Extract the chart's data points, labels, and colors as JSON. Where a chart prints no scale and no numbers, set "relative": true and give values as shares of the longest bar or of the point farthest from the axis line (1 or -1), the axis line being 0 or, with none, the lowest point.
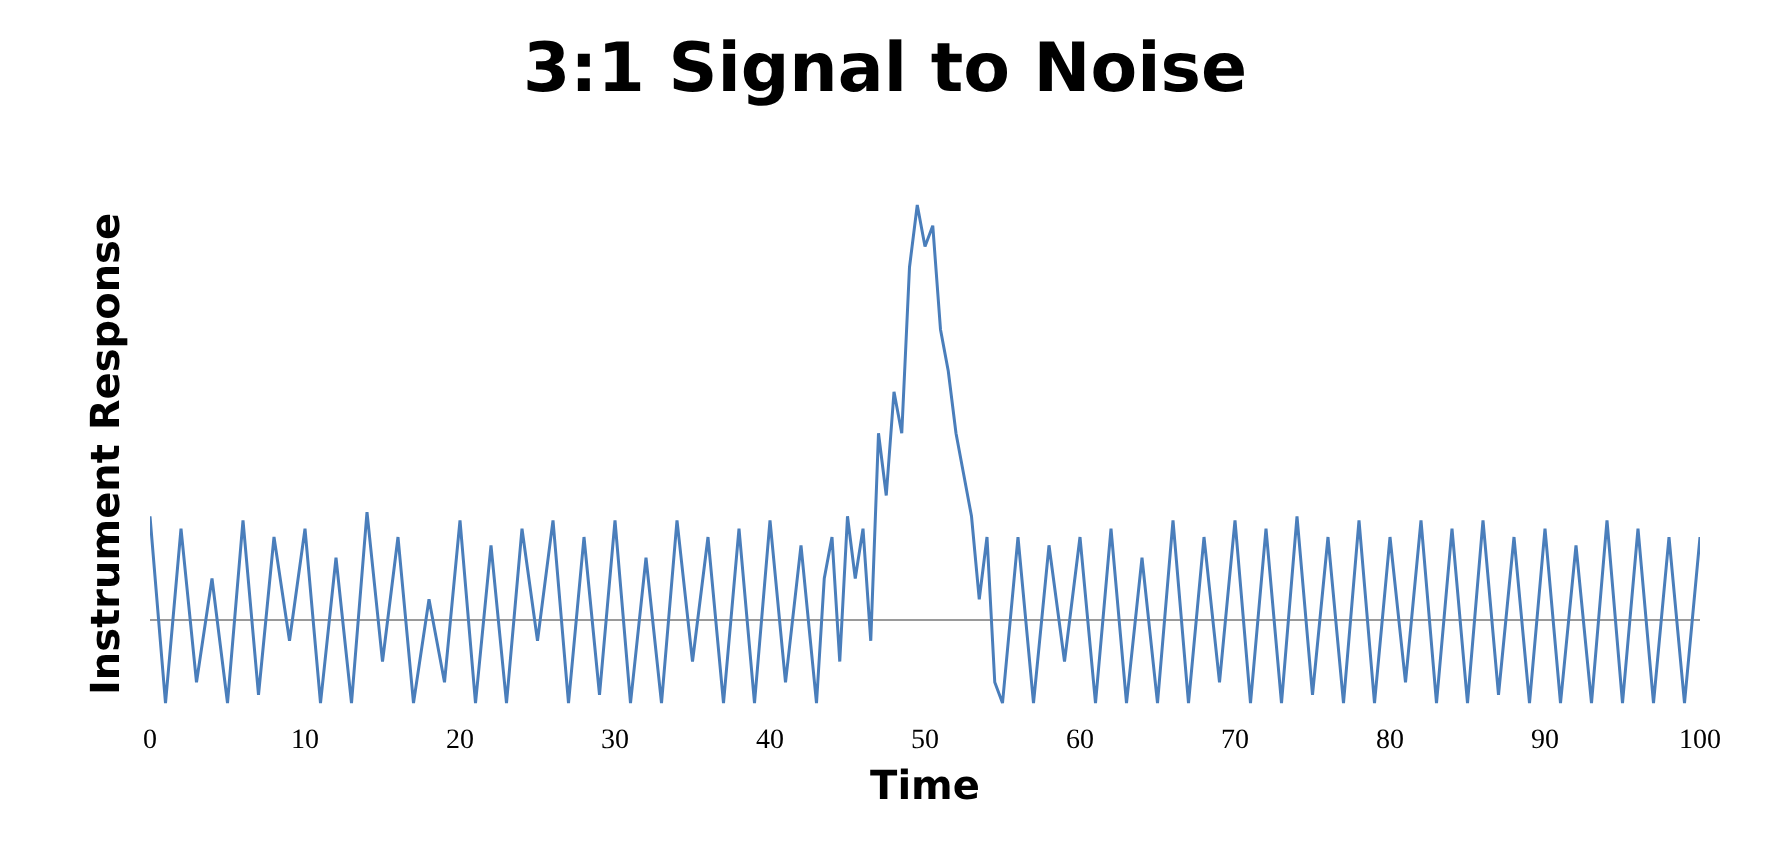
{
  "chart_data": {
    "type": "line",
    "title": "3:1 Signal to Noise",
    "xlabel": "Time",
    "ylabel": "Instrument Response",
    "relative": true,
    "xlim": [
      0,
      100
    ],
    "xticks": [
      0,
      10,
      20,
      30,
      40,
      50,
      60,
      70,
      80,
      90,
      100
    ],
    "series": [
      {
        "color": "#4a7ebb",
        "x": [
          0,
          1,
          2,
          3,
          4,
          5,
          6,
          7,
          8,
          9,
          10,
          11,
          12,
          13,
          14,
          15,
          16,
          17,
          18,
          19,
          20,
          21,
          22,
          23,
          24,
          25,
          26,
          27,
          28,
          29,
          30,
          31,
          32,
          33,
          34,
          35,
          36,
          37,
          38,
          39,
          40,
          41,
          42,
          43,
          43.5,
          44,
          44.5,
          45,
          45.5,
          46,
          46.5,
          47,
          47.5,
          48,
          48.5,
          49,
          49.5,
          50,
          50.5,
          51,
          51.5,
          52,
          52.5,
          53,
          53.5,
          54,
          54.5,
          55,
          56,
          57,
          58,
          59,
          60,
          61,
          62,
          63,
          64,
          65,
          66,
          67,
          68,
          69,
          70,
          71,
          72,
          73,
          74,
          75,
          76,
          77,
          78,
          79,
          80,
          81,
          82,
          83,
          84,
          85,
          86,
          87,
          88,
          89,
          90,
          91,
          92,
          93,
          94,
          95,
          96,
          97,
          98,
          99,
          100
        ],
        "values": [
          0.25,
          -0.2,
          0.22,
          -0.15,
          0.1,
          -0.2,
          0.24,
          -0.18,
          0.2,
          -0.05,
          0.22,
          -0.2,
          0.15,
          -0.2,
          0.26,
          -0.1,
          0.2,
          -0.2,
          0.05,
          -0.15,
          0.24,
          -0.2,
          0.18,
          -0.2,
          0.22,
          -0.05,
          0.24,
          -0.2,
          0.2,
          -0.18,
          0.24,
          -0.2,
          0.15,
          -0.2,
          0.24,
          -0.1,
          0.2,
          -0.2,
          0.22,
          -0.2,
          0.24,
          -0.15,
          0.18,
          -0.2,
          0.1,
          0.2,
          -0.1,
          0.25,
          0.1,
          0.22,
          -0.05,
          0.45,
          0.3,
          0.55,
          0.45,
          0.85,
          1.0,
          0.9,
          0.95,
          0.7,
          0.6,
          0.45,
          0.35,
          0.25,
          0.05,
          0.2,
          -0.15,
          -0.2,
          0.2,
          -0.2,
          0.18,
          -0.1,
          0.2,
          -0.2,
          0.22,
          -0.2,
          0.15,
          -0.2,
          0.24,
          -0.2,
          0.2,
          -0.15,
          0.24,
          -0.2,
          0.22,
          -0.2,
          0.25,
          -0.18,
          0.2,
          -0.2,
          0.24,
          -0.2,
          0.2,
          -0.15,
          0.24,
          -0.2,
          0.22,
          -0.2,
          0.24,
          -0.18,
          0.2,
          -0.2,
          0.22,
          -0.2,
          0.18,
          -0.2,
          0.24,
          -0.2,
          0.22,
          -0.2,
          0.2,
          -0.2,
          0.2
        ]
      }
    ]
  }
}
